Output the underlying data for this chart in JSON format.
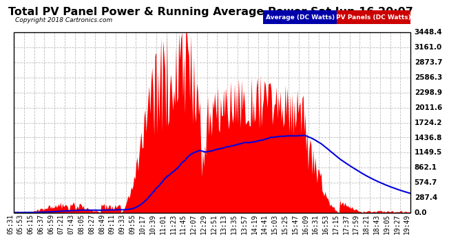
{
  "title": "Total PV Panel Power & Running Average Power Sat Jun 16 20:07",
  "copyright": "Copyright 2018 Cartronics.com",
  "legend_avg": "Average (DC Watts)",
  "legend_pv": "PV Panels (DC Watts)",
  "ylabel_ticks": [
    0.0,
    287.4,
    574.7,
    862.1,
    1149.5,
    1436.8,
    1724.2,
    2011.6,
    2298.9,
    2586.3,
    2873.7,
    3161.0,
    3448.4
  ],
  "ymax": 3448.4,
  "ymin": 0.0,
  "background_color": "#ffffff",
  "grid_color": "#bbbbbb",
  "area_color": "#ff0000",
  "line_color": "#0000dd",
  "title_fontsize": 11.5,
  "tick_fontsize": 7.0,
  "x_labels": [
    "05:31",
    "05:53",
    "06:15",
    "06:37",
    "06:59",
    "07:21",
    "07:43",
    "08:05",
    "08:27",
    "08:49",
    "09:11",
    "09:33",
    "09:55",
    "10:17",
    "10:39",
    "11:01",
    "11:23",
    "11:45",
    "12:07",
    "12:29",
    "12:51",
    "13:13",
    "13:35",
    "13:57",
    "14:19",
    "14:41",
    "15:03",
    "15:25",
    "15:47",
    "16:09",
    "16:31",
    "16:53",
    "17:15",
    "17:37",
    "17:59",
    "18:21",
    "18:43",
    "19:05",
    "19:27",
    "19:49"
  ],
  "num_points": 400,
  "legend_avg_color": "#0000aa",
  "legend_pv_color": "#cc0000",
  "border_color": "#000000"
}
